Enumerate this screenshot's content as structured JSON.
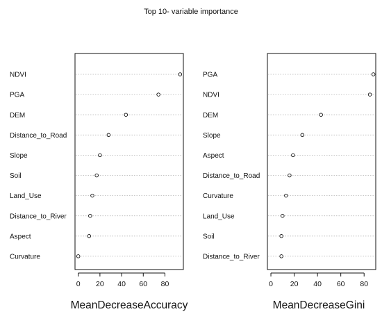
{
  "title": "Top 10- variable importance",
  "chart_data": [
    {
      "type": "scatter",
      "variant": "dotchart",
      "xlabel": "MeanDecreaseAccuracy",
      "xlim": [
        -3,
        97
      ],
      "xticks": [
        0,
        20,
        40,
        60,
        80
      ],
      "grid": "dotted horizontal guide per variable",
      "variables": [
        "NDVI",
        "PGA",
        "DEM",
        "Distance_to_Road",
        "Slope",
        "Soil",
        "Land_Use",
        "Distance_to_River",
        "Aspect",
        "Curvature"
      ],
      "values": [
        94,
        74,
        44,
        28,
        20,
        17,
        13,
        11,
        10,
        0
      ]
    },
    {
      "type": "scatter",
      "variant": "dotchart",
      "xlabel": "MeanDecreaseGini",
      "xlim": [
        -3,
        90
      ],
      "xticks": [
        0,
        20,
        40,
        60,
        80
      ],
      "grid": "dotted horizontal guide per variable",
      "variables": [
        "PGA",
        "NDVI",
        "DEM",
        "Slope",
        "Aspect",
        "Distance_to_Road",
        "Curvature",
        "Land_Use",
        "Soil",
        "Distance_to_River"
      ],
      "values": [
        88,
        85,
        43,
        27,
        19,
        16,
        13,
        10,
        9,
        9
      ]
    }
  ],
  "colors": {
    "axis": "#111111",
    "point": "#111111",
    "guide": "#b5b5b5"
  }
}
